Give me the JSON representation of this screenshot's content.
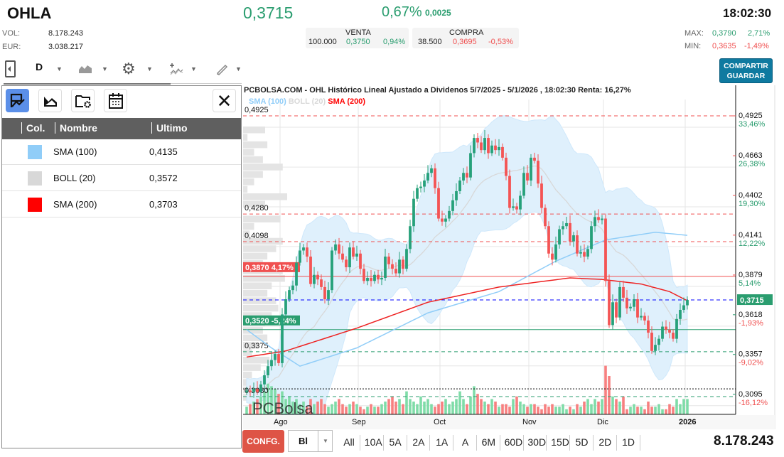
{
  "header": {
    "ticker": "OHLA",
    "price": "0,3715",
    "change_pct": "0,67%",
    "change_abs": "0,0025",
    "time": "18:02:30",
    "vol_label": "VOL:",
    "vol": "8.178.243",
    "eur_label": "EUR:",
    "eur": "3.038.217",
    "venta": {
      "label": "VENTA",
      "qty": "100.000",
      "price": "0,3750",
      "pct": "0,94%"
    },
    "compra": {
      "label": "COMPRA",
      "qty": "38.500",
      "price": "0,3695",
      "pct": "-0,53%"
    },
    "max": {
      "label": "MAX:",
      "price": "0,3790",
      "pct": "2,71%"
    },
    "min": {
      "label": "MIN:",
      "price": "0,3635",
      "pct": "-1,49%"
    },
    "share_label": "COMPARTIR",
    "save_label": "GUARDAR"
  },
  "toolbar": {
    "period": "D"
  },
  "panel": {
    "columns": [
      "Col.",
      "Nombre",
      "Ultimo"
    ],
    "rows": [
      {
        "color": "#90cdf8",
        "name": "SMA (100)",
        "value": "0,4135"
      },
      {
        "color": "#d8d8d8",
        "name": "BOLL (20)",
        "value": "0,3572"
      },
      {
        "color": "#ff0000",
        "name": "SMA (200)",
        "value": "0,3703"
      }
    ]
  },
  "chart_data": {
    "type": "candlestick",
    "title": "PCBOLSA.COM - OHL Histórico Lineal Ajustado a Dividenos 5/7/2025 - 5/1/2026 , 18:02:30 Renta: 16,27%",
    "legend": [
      {
        "name": "SMA (100)",
        "color": "#90cdf8"
      },
      {
        "name": "BOLL (20)",
        "color": "#d8d8d8"
      },
      {
        "name": "SMA (200)",
        "color": "#ff0000"
      }
    ],
    "ylim": [
      0.3,
      0.5015
    ],
    "x_ticks": [
      "Ago",
      "Sep",
      "Oct",
      "Nov",
      "Dic",
      "2026"
    ],
    "x_tick_index": [
      10,
      32,
      55,
      80,
      101,
      124
    ],
    "closes": [
      0.312,
      0.311,
      0.313,
      0.311,
      0.316,
      0.322,
      0.328,
      0.332,
      0.336,
      0.33,
      0.362,
      0.372,
      0.378,
      0.381,
      0.396,
      0.404,
      0.406,
      0.4,
      0.382,
      0.388,
      0.385,
      0.38,
      0.372,
      0.378,
      0.404,
      0.408,
      0.402,
      0.398,
      0.393,
      0.406,
      0.4,
      0.402,
      0.392,
      0.384,
      0.386,
      0.384,
      0.388,
      0.385,
      0.386,
      0.4,
      0.395,
      0.392,
      0.389,
      0.398,
      0.392,
      0.405,
      0.42,
      0.438,
      0.445,
      0.446,
      0.45,
      0.455,
      0.458,
      0.445,
      0.425,
      0.423,
      0.425,
      0.43,
      0.437,
      0.443,
      0.45,
      0.455,
      0.452,
      0.468,
      0.478,
      0.475,
      0.47,
      0.478,
      0.468,
      0.473,
      0.47,
      0.472,
      0.465,
      0.453,
      0.432,
      0.433,
      0.431,
      0.44,
      0.455,
      0.45,
      0.465,
      0.463,
      0.448,
      0.432,
      0.42,
      0.402,
      0.398,
      0.408,
      0.418,
      0.42,
      0.422,
      0.41,
      0.414,
      0.402,
      0.403,
      0.4,
      0.405,
      0.42,
      0.426,
      0.424,
      0.425,
      0.384,
      0.355,
      0.37,
      0.36,
      0.38,
      0.373,
      0.366,
      0.367,
      0.372,
      0.36,
      0.361,
      0.358,
      0.35,
      0.338,
      0.342,
      0.346,
      0.354,
      0.352,
      0.35,
      0.346,
      0.359,
      0.365,
      0.368,
      0.3715
    ],
    "volume_relative": [
      0.15,
      0.2,
      0.25,
      0.3,
      0.35,
      0.45,
      0.6,
      0.55,
      0.5,
      0.4,
      0.45,
      0.3,
      0.35,
      0.25,
      0.3,
      0.2,
      0.25,
      0.15,
      0.3,
      0.2,
      0.25,
      0.3,
      0.2,
      0.15,
      0.2,
      0.25,
      0.3,
      0.2,
      0.15,
      0.2,
      0.25,
      0.2,
      0.15,
      0.1,
      0.15,
      0.2,
      0.15,
      0.15,
      0.2,
      0.25,
      0.3,
      0.35,
      0.25,
      0.3,
      0.2,
      0.45,
      0.3,
      0.25,
      0.2,
      0.35,
      0.25,
      0.3,
      0.2,
      0.15,
      0.2,
      0.25,
      0.3,
      0.2,
      0.25,
      0.3,
      0.45,
      0.3,
      0.2,
      0.35,
      0.55,
      0.4,
      0.3,
      0.25,
      0.2,
      0.3,
      0.25,
      0.15,
      0.2,
      0.2,
      0.15,
      0.3,
      0.35,
      0.25,
      0.2,
      0.15,
      0.2,
      0.2,
      0.15,
      0.1,
      0.2,
      0.15,
      0.2,
      0.15,
      0.15,
      0.2,
      0.1,
      0.15,
      0.1,
      0.2,
      0.15,
      0.25,
      0.3,
      0.2,
      0.3,
      0.25,
      0.3,
      0.95,
      0.75,
      0.35,
      0.3,
      0.25,
      0.35,
      0.1,
      0.15,
      0.2,
      0.15,
      0.15,
      0.1,
      0.25,
      0.15,
      0.15,
      0.2,
      0.1,
      0.1,
      0.2,
      0.15,
      0.3,
      0.2,
      0.3,
      0.3
    ],
    "sma100": [
      [
        0,
        0.352
      ],
      [
        7,
        0.34
      ],
      [
        15,
        0.328
      ],
      [
        31,
        0.34
      ],
      [
        51,
        0.363
      ],
      [
        71,
        0.377
      ],
      [
        87,
        0.397
      ],
      [
        101,
        0.411
      ],
      [
        115,
        0.416
      ],
      [
        124,
        0.414
      ]
    ],
    "sma200": [
      [
        0,
        0.334
      ],
      [
        11,
        0.338
      ],
      [
        31,
        0.353
      ],
      [
        51,
        0.37
      ],
      [
        71,
        0.38
      ],
      [
        91,
        0.386
      ],
      [
        100,
        0.385
      ],
      [
        111,
        0.382
      ],
      [
        119,
        0.377
      ],
      [
        124,
        0.371
      ]
    ],
    "volume_profile_relative": [
      0.5,
      0.1,
      0.55,
      0.25,
      0.45,
      0.9,
      0.45,
      0.25,
      0.1,
      1,
      0.5,
      0,
      0.85,
      0.25,
      0.15,
      0.9,
      0.75,
      0.55,
      0.45,
      0.9,
      0.95,
      0.65,
      0.55,
      0.75,
      0.8,
      0.65,
      0.5,
      0.45,
      0.55,
      0.35,
      0.2,
      0.6,
      0.4,
      0.2,
      0.7,
      0.3,
      0.2
    ],
    "levels": [
      {
        "value": 0.4925,
        "label": "0,4925",
        "style": "dashed",
        "color": "#f05050"
      },
      {
        "value": 0.428,
        "label": "0,4280",
        "style": "dashed",
        "color": "#f05050"
      },
      {
        "value": 0.4098,
        "label": "0,4098",
        "style": "dashed",
        "color": "#f05050"
      },
      {
        "value": 0.387,
        "label": "0,3870  4,17%",
        "style": "solid",
        "color": "#f05050",
        "tag": true
      },
      {
        "value": 0.3715,
        "label": "",
        "style": "dashed",
        "color": "#0000ff"
      },
      {
        "value": 0.352,
        "label": "0,3520  -5,24%",
        "style": "solid",
        "color": "#2a9d6f",
        "tag": true
      },
      {
        "value": 0.3375,
        "label": "0,3375",
        "style": "dashed",
        "color": "#2a9d6f"
      },
      {
        "value": 0.3131,
        "label": "",
        "style": "dotted",
        "color": "#000000"
      },
      {
        "value": 0.308,
        "label": "0,3080",
        "style": "dashed",
        "color": "#2a9d6f"
      }
    ],
    "right_axis": [
      {
        "price": "0,4925",
        "pct": "33,46%",
        "value": 0.4925
      },
      {
        "price": "0,4663",
        "pct": "26,38%",
        "value": 0.4663
      },
      {
        "price": "0,4402",
        "pct": "19,30%",
        "value": 0.4402
      },
      {
        "price": "0,4141",
        "pct": "12,22%",
        "value": 0.4141
      },
      {
        "price": "0,3879",
        "pct": "5,14%",
        "value": 0.3879
      },
      {
        "price": "0,3618",
        "pct": "-1,93%",
        "value": 0.3618
      },
      {
        "price": "0,3357",
        "pct": "-9,02%",
        "value": 0.3357
      },
      {
        "price": "0,3095",
        "pct": "-16,12%",
        "value": 0.3095
      }
    ],
    "last_price_tag": "0,3715",
    "colors": {
      "up": "#26a17a",
      "down": "#f45454",
      "band": "#dff0fc"
    }
  },
  "watermark": "PCBolsa",
  "bottom": {
    "config_label": "CONFG.",
    "chart_type": "Bl",
    "ranges": [
      "All",
      "10A",
      "5A",
      "2A",
      "1A",
      "A",
      "6M",
      "60D",
      "30D",
      "15D",
      "5D",
      "2D",
      "1D"
    ],
    "volume_total": "8.178.243"
  }
}
